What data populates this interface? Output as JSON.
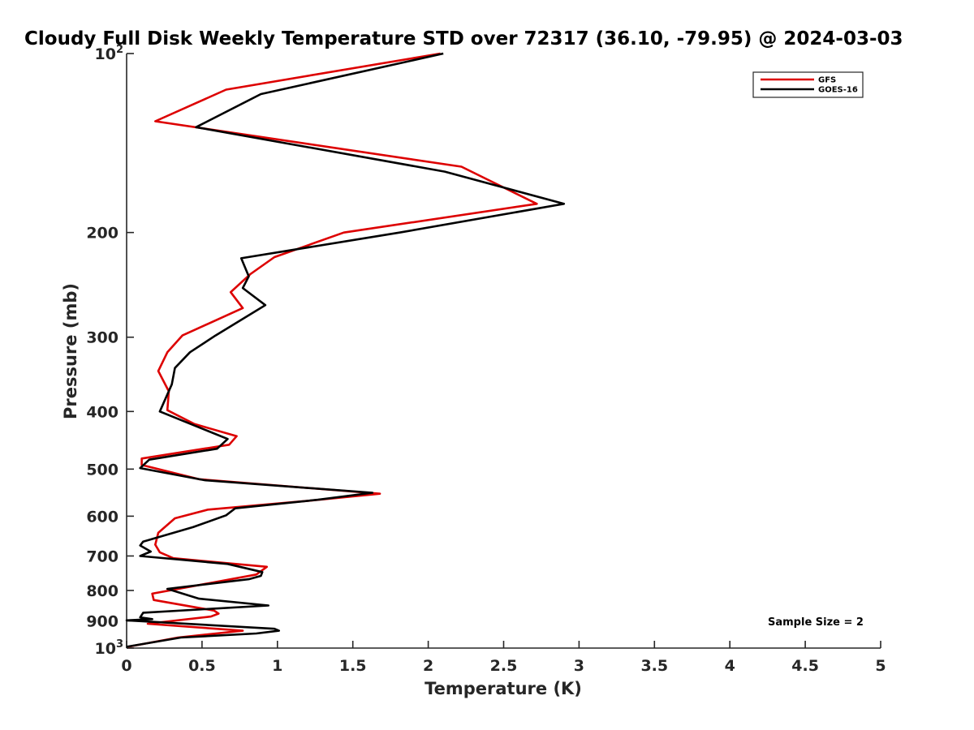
{
  "chart_data": {
    "type": "line",
    "title": "Cloudy Full Disk Weekly Temperature STD over 72317 (36.10, -79.95) @ 2024-03-03",
    "xlabel": "Temperature (K)",
    "ylabel": "Pressure (mb)",
    "xlim": [
      0,
      5
    ],
    "ylim": [
      100,
      1000
    ],
    "y_scale": "log",
    "y_reversed": true,
    "x_ticks": [
      "0",
      "0.5",
      "1",
      "1.5",
      "2",
      "2.5",
      "3",
      "3.5",
      "4",
      "4.5",
      "5"
    ],
    "y_ticks": [
      {
        "value": 100,
        "label": "10",
        "sup": "2"
      },
      {
        "value": 200,
        "label": "200"
      },
      {
        "value": 300,
        "label": "300"
      },
      {
        "value": 400,
        "label": "400"
      },
      {
        "value": 500,
        "label": "500"
      },
      {
        "value": 600,
        "label": "600"
      },
      {
        "value": 700,
        "label": "700"
      },
      {
        "value": 800,
        "label": "800"
      },
      {
        "value": 900,
        "label": "900"
      },
      {
        "value": 1000,
        "label": "10",
        "sup": "3"
      }
    ],
    "grid": false,
    "legend_position": "top-right",
    "annotation": "Sample Size = 2",
    "series": [
      {
        "name": "GFS",
        "color": "#dd0000",
        "points": [
          [
            2.08,
            100
          ],
          [
            0.66,
            115
          ],
          [
            0.19,
            130
          ],
          [
            2.22,
            155
          ],
          [
            2.72,
            179
          ],
          [
            1.44,
            200
          ],
          [
            0.98,
            220
          ],
          [
            0.82,
            235
          ],
          [
            0.69,
            252
          ],
          [
            0.77,
            268
          ],
          [
            0.37,
            298
          ],
          [
            0.27,
            318
          ],
          [
            0.21,
            342
          ],
          [
            0.28,
            370
          ],
          [
            0.27,
            398
          ],
          [
            0.45,
            420
          ],
          [
            0.73,
            440
          ],
          [
            0.68,
            455
          ],
          [
            0.1,
            480
          ],
          [
            0.1,
            492
          ],
          [
            0.48,
            520
          ],
          [
            1.68,
            550
          ],
          [
            1.21,
            565
          ],
          [
            0.54,
            585
          ],
          [
            0.32,
            605
          ],
          [
            0.21,
            640
          ],
          [
            0.19,
            670
          ],
          [
            0.22,
            690
          ],
          [
            0.31,
            706
          ],
          [
            0.93,
            730
          ],
          [
            0.86,
            752
          ],
          [
            0.17,
            810
          ],
          [
            0.18,
            830
          ],
          [
            0.58,
            865
          ],
          [
            0.61,
            875
          ],
          [
            0.56,
            885
          ],
          [
            0.14,
            910
          ],
          [
            0.77,
            935
          ],
          [
            0.34,
            960
          ],
          [
            0.01,
            995
          ]
        ]
      },
      {
        "name": "GOES-16",
        "color": "#000000",
        "points": [
          [
            2.1,
            100
          ],
          [
            0.89,
            117
          ],
          [
            0.46,
            133
          ],
          [
            2.11,
            158
          ],
          [
            2.9,
            179
          ],
          [
            1.81,
            200
          ],
          [
            0.76,
            221
          ],
          [
            0.81,
            237
          ],
          [
            0.77,
            248
          ],
          [
            0.92,
            265
          ],
          [
            0.59,
            298
          ],
          [
            0.42,
            318
          ],
          [
            0.32,
            338
          ],
          [
            0.3,
            360
          ],
          [
            0.22,
            400
          ],
          [
            0.67,
            445
          ],
          [
            0.6,
            462
          ],
          [
            0.15,
            482
          ],
          [
            0.09,
            498
          ],
          [
            0.52,
            522
          ],
          [
            1.63,
            548
          ],
          [
            1.27,
            563
          ],
          [
            0.72,
            582
          ],
          [
            0.66,
            598
          ],
          [
            0.44,
            626
          ],
          [
            0.11,
            662
          ],
          [
            0.09,
            672
          ],
          [
            0.16,
            688
          ],
          [
            0.09,
            700
          ],
          [
            0.67,
            722
          ],
          [
            0.9,
            745
          ],
          [
            0.89,
            756
          ],
          [
            0.81,
            766
          ],
          [
            0.27,
            795
          ],
          [
            0.48,
            826
          ],
          [
            0.94,
            848
          ],
          [
            0.11,
            872
          ],
          [
            0.09,
            888
          ],
          [
            0.17,
            894
          ],
          [
            0.0,
            898
          ],
          [
            0.98,
            928
          ],
          [
            1.01,
            935
          ],
          [
            0.86,
            945
          ],
          [
            0.36,
            960
          ],
          [
            0.0,
            995
          ]
        ]
      }
    ]
  }
}
